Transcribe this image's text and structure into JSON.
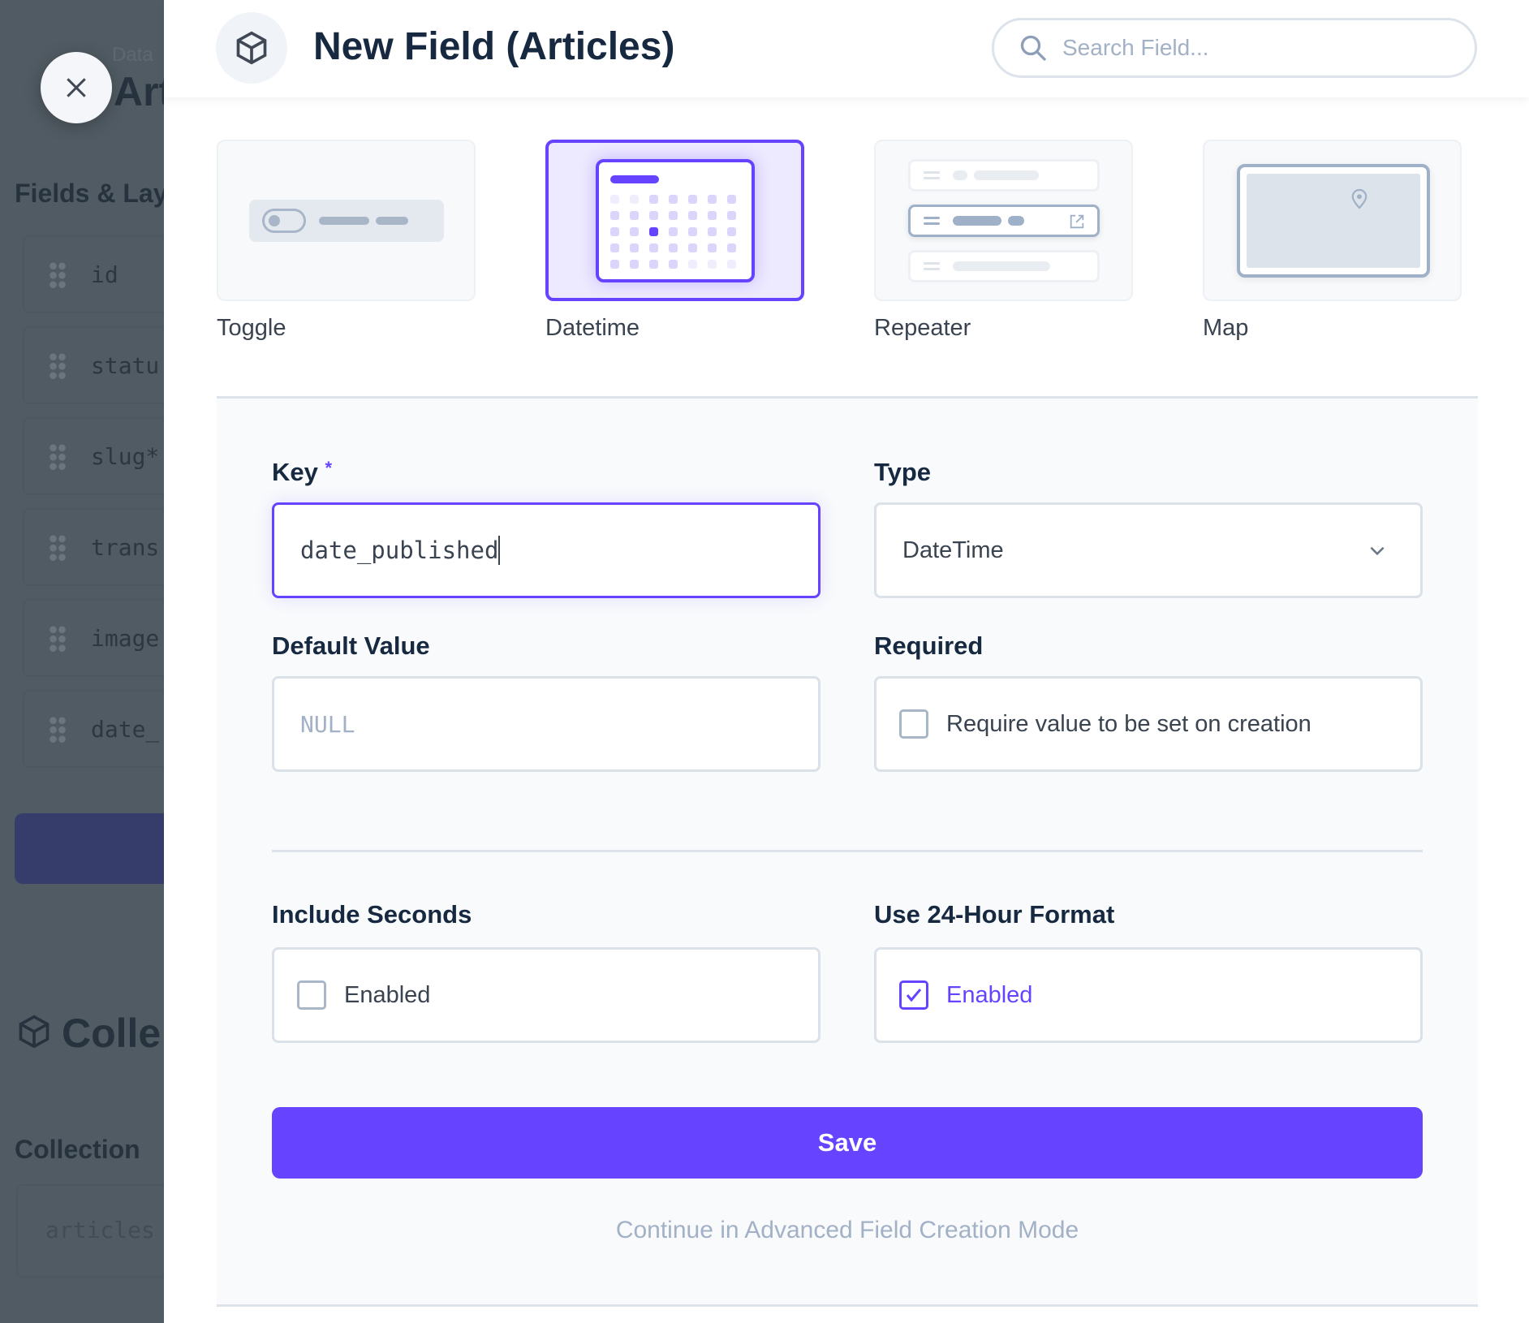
{
  "background": {
    "breadcrumb": "Data",
    "page_title": "Art",
    "section_title": "Fields & Lay",
    "fields": [
      "id",
      "statu",
      "slug*",
      "trans",
      "image",
      "date_"
    ],
    "collection_heading": "Colle",
    "collection_label": "Collection",
    "collection_value": "articles"
  },
  "header": {
    "title": "New Field (Articles)",
    "search_placeholder": "Search Field..."
  },
  "field_types": [
    {
      "label": "Toggle",
      "selected": false
    },
    {
      "label": "Datetime",
      "selected": true
    },
    {
      "label": "Repeater",
      "selected": false
    },
    {
      "label": "Map",
      "selected": false
    }
  ],
  "form": {
    "key_label": "Key",
    "key_required_mark": "*",
    "key_value": "date_published",
    "type_label": "Type",
    "type_value": "DateTime",
    "default_label": "Default Value",
    "default_placeholder": "NULL",
    "required_label": "Required",
    "required_text": "Require value to be set on creation",
    "required_checked": false,
    "seconds_label": "Include Seconds",
    "seconds_text": "Enabled",
    "seconds_checked": false,
    "hour24_label": "Use 24-Hour Format",
    "hour24_text": "Enabled",
    "hour24_checked": true,
    "save_label": "Save",
    "advanced_link": "Continue in Advanced Field Creation Mode"
  },
  "colors": {
    "accent": "#6644ff",
    "overlay": "#515b63"
  }
}
